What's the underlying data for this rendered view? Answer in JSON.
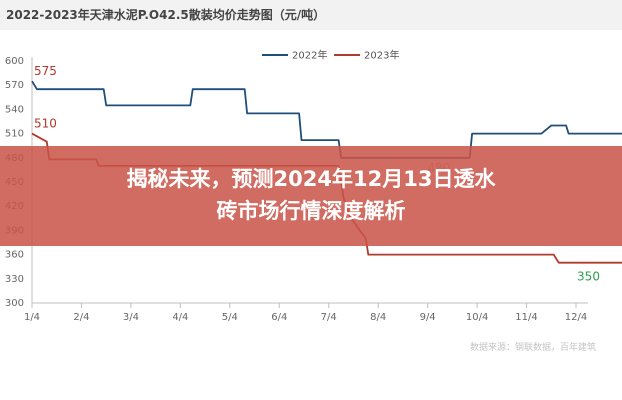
{
  "chart_data": {
    "type": "line",
    "title": "2022-2023年天津水泥P.O42.5散装均价走势图（元/吨）",
    "x_ticks": [
      "1/4",
      "2/4",
      "3/4",
      "4/4",
      "5/4",
      "6/4",
      "7/4",
      "8/4",
      "9/4",
      "10/4",
      "11/4",
      "12/4"
    ],
    "ylim": [
      300,
      600
    ],
    "y_ticks": [
      300,
      330,
      360,
      390,
      420,
      450,
      480,
      510,
      540,
      570,
      600
    ],
    "grid": false,
    "legend_position": "top-center",
    "series": [
      {
        "name": "2022年",
        "color": "#1f4e79",
        "points": [
          [
            0,
            575
          ],
          [
            0.1,
            565
          ],
          [
            1.45,
            565
          ],
          [
            1.5,
            545
          ],
          [
            3.2,
            545
          ],
          [
            3.25,
            565
          ],
          [
            4.3,
            565
          ],
          [
            4.35,
            535
          ],
          [
            5.4,
            535
          ],
          [
            5.45,
            502
          ],
          [
            6.2,
            502
          ],
          [
            6.25,
            480
          ],
          [
            8.85,
            480
          ],
          [
            8.9,
            510
          ],
          [
            10.3,
            510
          ],
          [
            10.5,
            520
          ],
          [
            10.8,
            520
          ],
          [
            10.85,
            510
          ],
          [
            12.9,
            510
          ]
        ]
      },
      {
        "name": "2023年",
        "color": "#b03a2e",
        "points": [
          [
            0,
            510
          ],
          [
            0.3,
            500
          ],
          [
            0.35,
            478
          ],
          [
            1.3,
            478
          ],
          [
            1.35,
            470
          ],
          [
            6.2,
            470
          ],
          [
            6.3,
            430
          ],
          [
            6.45,
            405
          ],
          [
            6.75,
            380
          ],
          [
            6.8,
            360
          ],
          [
            10.55,
            360
          ],
          [
            10.65,
            350
          ],
          [
            12.9,
            350
          ]
        ]
      }
    ],
    "annotations": [
      {
        "text": "575",
        "x": 0,
        "y": 575,
        "color": "#b03a2e"
      },
      {
        "text": "510",
        "x": 0,
        "y": 510,
        "color": "#b03a2e"
      },
      {
        "text": "480",
        "x": 8.2,
        "y": 480,
        "color": "#b0b0b0"
      },
      {
        "text": "350",
        "x": 10.9,
        "y": 350,
        "color": "#2e9e4f"
      }
    ]
  },
  "overlay": {
    "headline_line1": "揭秘未来，预测2024年12月13日透水",
    "headline_line2": "砖市场行情深度解析",
    "banner_color": "#c95449"
  },
  "watermark": "数据来源：钢联数据，百年建筑"
}
